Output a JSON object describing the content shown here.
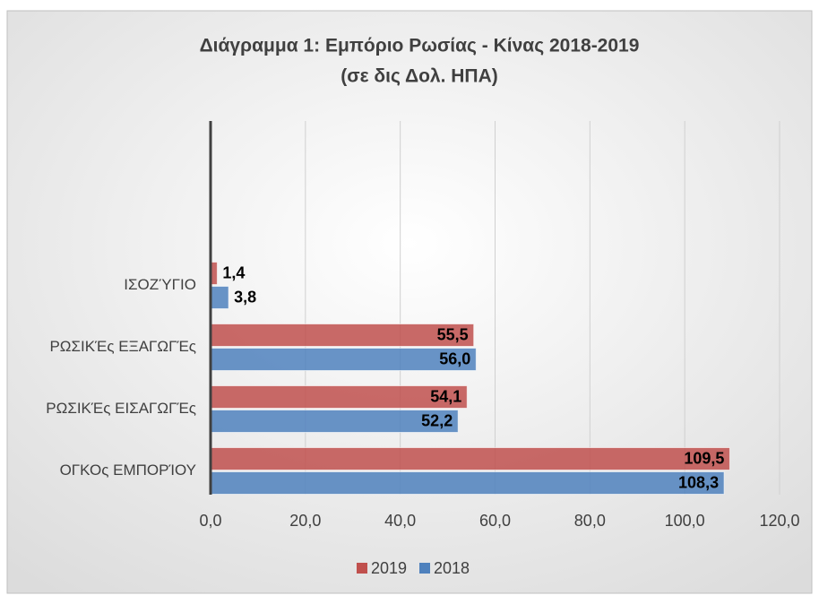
{
  "chart_data": {
    "type": "hbar",
    "title": "Διάγραμμα 1: Εμπόριο Ρωσίας - Κίνας  2018-2019",
    "subtitle": "(σε δις Δολ. ΗΠΑ)",
    "categories": [
      "ΟΓΚΟς ΕΜΠΟΡΊΟΥ",
      "ΡΩΣΙΚΈς ΕΙΣΑΓΩΓΈς",
      "ΡΩΣΙΚΈς ΕΞΑΓΩΓΈς",
      "ΙΣΟΖΎΓΙΟ"
    ],
    "series": [
      {
        "name": "2019",
        "color": "#c0504d",
        "values": [
          109.5,
          54.1,
          55.5,
          1.4
        ],
        "value_labels": [
          "109,5",
          "54,1",
          "55,5",
          "1,4"
        ]
      },
      {
        "name": "2018",
        "color": "#4f81bd",
        "values": [
          108.3,
          52.2,
          56.0,
          3.8
        ],
        "value_labels": [
          "108,3",
          "52,2",
          "56,0",
          "3,8"
        ]
      }
    ],
    "xlim": [
      0,
      120
    ],
    "xticks": [
      {
        "value": 0,
        "label": "0,0"
      },
      {
        "value": 20,
        "label": "20,0"
      },
      {
        "value": 40,
        "label": "40,0"
      },
      {
        "value": 60,
        "label": "60,0"
      },
      {
        "value": 80,
        "label": "80,0"
      },
      {
        "value": 100,
        "label": "100,0"
      },
      {
        "value": 120,
        "label": "120,0"
      }
    ],
    "grid": true,
    "legend": "bottom"
  }
}
